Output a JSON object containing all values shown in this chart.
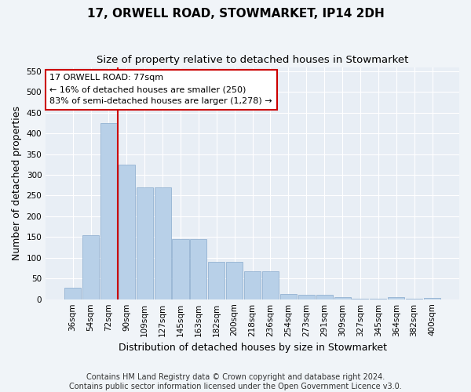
{
  "title": "17, ORWELL ROAD, STOWMARKET, IP14 2DH",
  "subtitle": "Size of property relative to detached houses in Stowmarket",
  "xlabel": "Distribution of detached houses by size in Stowmarket",
  "ylabel": "Number of detached properties",
  "categories": [
    "36sqm",
    "54sqm",
    "72sqm",
    "90sqm",
    "109sqm",
    "127sqm",
    "145sqm",
    "163sqm",
    "182sqm",
    "200sqm",
    "218sqm",
    "236sqm",
    "254sqm",
    "273sqm",
    "291sqm",
    "309sqm",
    "327sqm",
    "345sqm",
    "364sqm",
    "382sqm",
    "400sqm"
  ],
  "values": [
    27,
    155,
    425,
    325,
    270,
    270,
    145,
    145,
    90,
    90,
    68,
    68,
    12,
    10,
    10,
    5,
    2,
    2,
    5,
    2,
    4
  ],
  "bar_color": "#b8d0e8",
  "bar_edge_color": "#88aacc",
  "annotation_box_text": "17 ORWELL ROAD: 77sqm\n← 16% of detached houses are smaller (250)\n83% of semi-detached houses are larger (1,278) →",
  "annotation_box_color": "#ffffff",
  "annotation_box_edge_color": "#cc0000",
  "marker_line_color": "#cc0000",
  "ylim": [
    0,
    560
  ],
  "yticks": [
    0,
    50,
    100,
    150,
    200,
    250,
    300,
    350,
    400,
    450,
    500,
    550
  ],
  "footer_line1": "Contains HM Land Registry data © Crown copyright and database right 2024.",
  "footer_line2": "Contains public sector information licensed under the Open Government Licence v3.0.",
  "bg_color": "#f0f4f8",
  "plot_bg_color": "#e8eef5",
  "title_fontsize": 11,
  "subtitle_fontsize": 9.5,
  "axis_label_fontsize": 9,
  "tick_fontsize": 7.5,
  "footer_fontsize": 7
}
